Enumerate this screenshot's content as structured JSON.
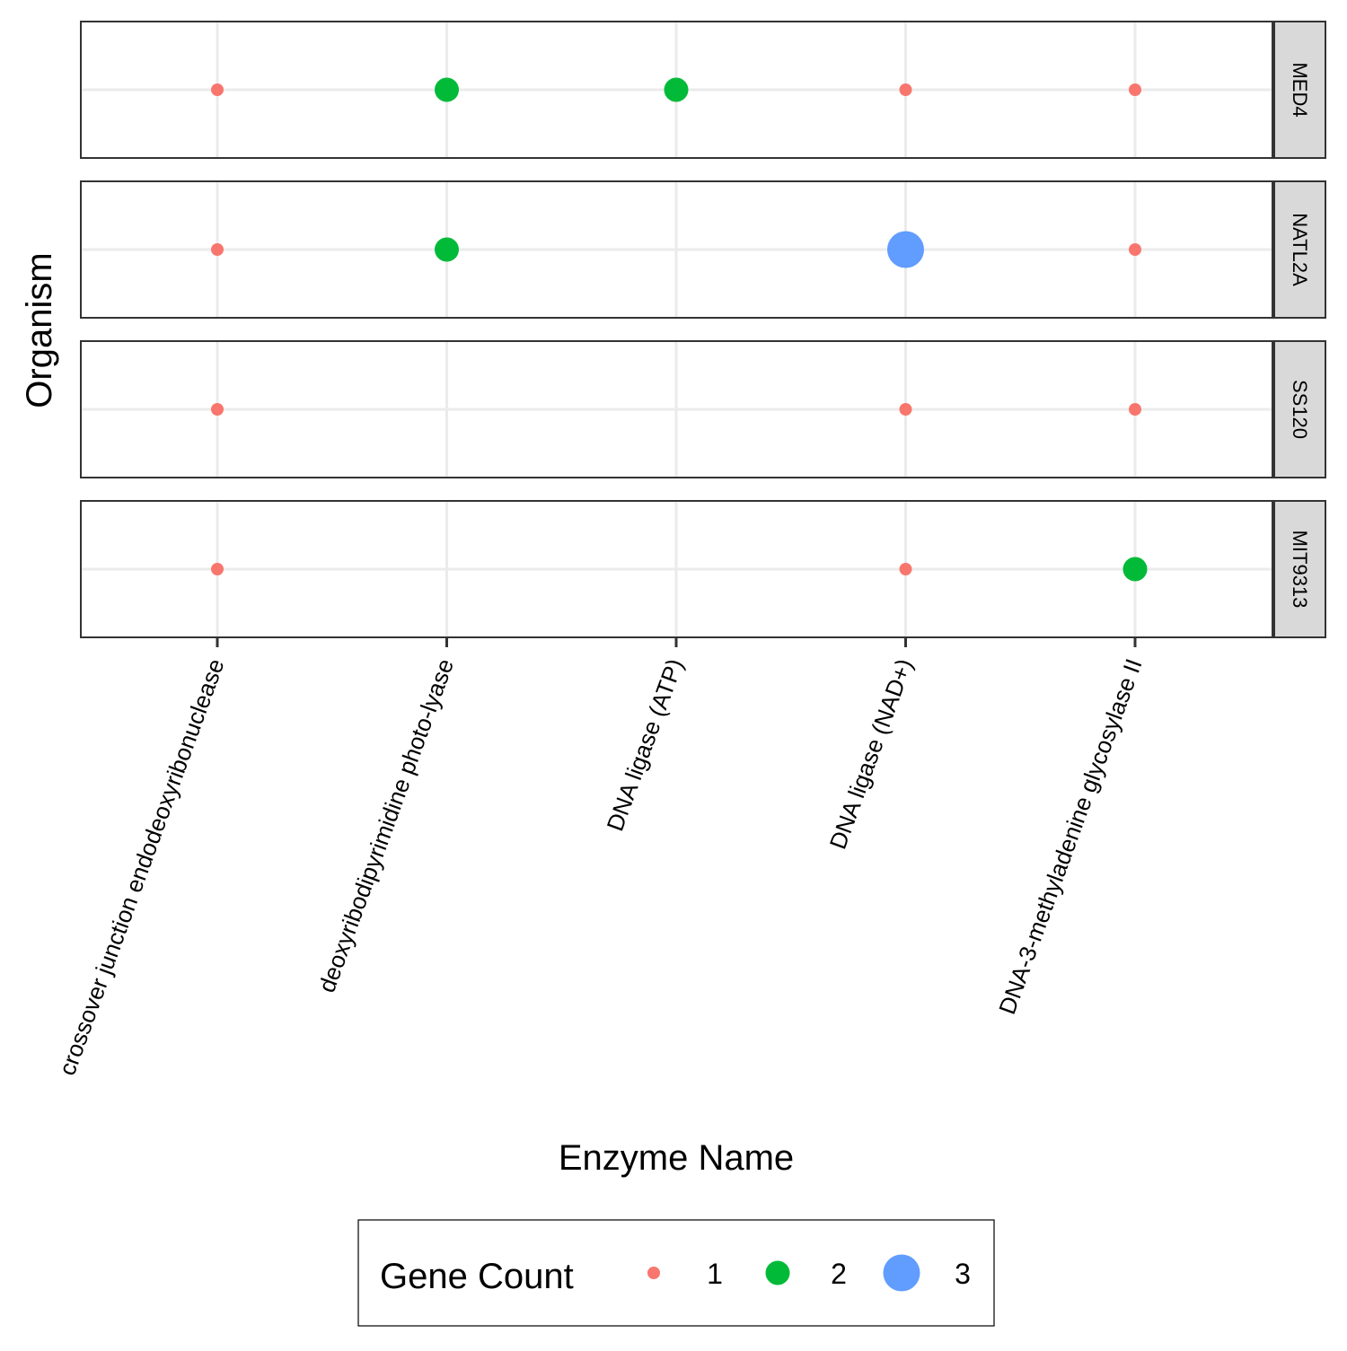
{
  "chart_data": {
    "type": "scatter",
    "title": "",
    "xlabel": "Enzyme Name",
    "ylabel": "Organism",
    "categories": [
      "crossover junction endodeoxyribonuclease",
      "deoxyribodipyrimidine photo-lyase",
      "DNA ligase (ATP)",
      "DNA ligase (NAD+)",
      "DNA-3-methyladenine glycosylase II"
    ],
    "facets": [
      "MED4",
      "NATL2A",
      "SS120",
      "MIT9313"
    ],
    "points": [
      {
        "facet": "MED4",
        "category": "crossover junction endodeoxyribonuclease",
        "gene_count": 1
      },
      {
        "facet": "MED4",
        "category": "deoxyribodipyrimidine photo-lyase",
        "gene_count": 2
      },
      {
        "facet": "MED4",
        "category": "DNA ligase (ATP)",
        "gene_count": 2
      },
      {
        "facet": "MED4",
        "category": "DNA ligase (NAD+)",
        "gene_count": 1
      },
      {
        "facet": "MED4",
        "category": "DNA-3-methyladenine glycosylase II",
        "gene_count": 1
      },
      {
        "facet": "NATL2A",
        "category": "crossover junction endodeoxyribonuclease",
        "gene_count": 1
      },
      {
        "facet": "NATL2A",
        "category": "deoxyribodipyrimidine photo-lyase",
        "gene_count": 2
      },
      {
        "facet": "NATL2A",
        "category": "DNA ligase (NAD+)",
        "gene_count": 3
      },
      {
        "facet": "NATL2A",
        "category": "DNA-3-methyladenine glycosylase II",
        "gene_count": 1
      },
      {
        "facet": "SS120",
        "category": "crossover junction endodeoxyribonuclease",
        "gene_count": 1
      },
      {
        "facet": "SS120",
        "category": "DNA ligase (NAD+)",
        "gene_count": 1
      },
      {
        "facet": "SS120",
        "category": "DNA-3-methyladenine glycosylase II",
        "gene_count": 1
      },
      {
        "facet": "MIT9313",
        "category": "crossover junction endodeoxyribonuclease",
        "gene_count": 1
      },
      {
        "facet": "MIT9313",
        "category": "DNA ligase (NAD+)",
        "gene_count": 1
      },
      {
        "facet": "MIT9313",
        "category": "DNA-3-methyladenine glycosylase II",
        "gene_count": 2
      }
    ],
    "legend": {
      "title": "Gene Count",
      "placement": "bottom",
      "entries": [
        {
          "label": "1",
          "value": 1,
          "color": "#F8766D"
        },
        {
          "label": "2",
          "value": 2,
          "color": "#00BA38"
        },
        {
          "label": "3",
          "value": 3,
          "color": "#619CFF"
        }
      ]
    },
    "grid": true
  }
}
